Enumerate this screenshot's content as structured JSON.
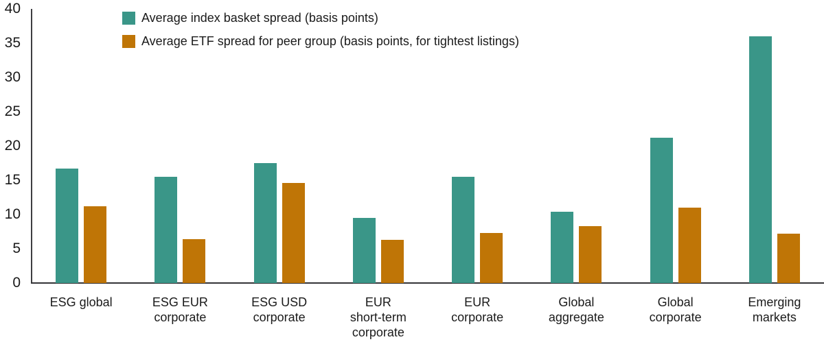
{
  "chart_data": {
    "type": "bar",
    "categories": [
      "ESG global",
      "ESG EUR corporate",
      "ESG USD corporate",
      "EUR short-term corporate",
      "EUR corporate",
      "Global aggregate",
      "Global corporate",
      "Emerging markets"
    ],
    "category_lines": [
      [
        "ESG global"
      ],
      [
        "ESG EUR",
        "corporate"
      ],
      [
        "ESG USD",
        "corporate"
      ],
      [
        "EUR",
        "short-term",
        "corporate"
      ],
      [
        "EUR",
        "corporate"
      ],
      [
        "Global",
        "aggregate"
      ],
      [
        "Global",
        "corporate"
      ],
      [
        "Emerging",
        "markets"
      ]
    ],
    "series": [
      {
        "name": "Average index basket spread (basis points)",
        "color": "#3A9688",
        "values": [
          16.7,
          15.5,
          17.5,
          9.5,
          15.5,
          10.4,
          21.2,
          36.0
        ]
      },
      {
        "name": "Average ETF spread for peer group (basis points, for tightest listings)",
        "color": "#BF7506",
        "values": [
          11.2,
          6.4,
          14.6,
          6.3,
          7.3,
          8.3,
          11.0,
          7.2
        ]
      }
    ],
    "ylabel": "",
    "xlabel": "",
    "ylim": [
      0,
      40
    ],
    "yticks": [
      0,
      5,
      10,
      15,
      20,
      25,
      30,
      35,
      40
    ],
    "grid": false,
    "legend_position": "top-left"
  },
  "colors": {
    "axis": "#333336",
    "text": "#1a1a1a"
  }
}
